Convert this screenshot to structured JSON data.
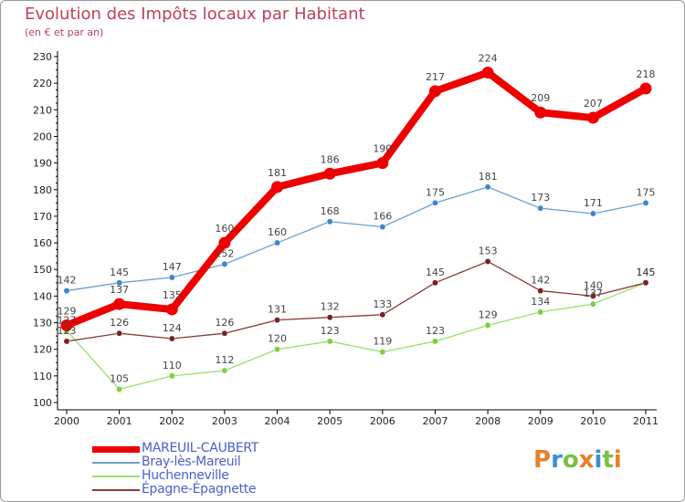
{
  "title": "Evolution des Impôts locaux par Habitant",
  "subtitle": "(en € et par an)",
  "brand": {
    "text": "Proxiti"
  },
  "colors": {
    "background": "#ffffff",
    "title": "#c0405a",
    "legend_text": "#4a5fd0",
    "axis": "#000000",
    "tick_label": "#222222",
    "data_label": "#444444"
  },
  "chart_data": {
    "type": "line",
    "title": "Evolution des Impôts locaux par Habitant",
    "subtitle": "(en € et par an)",
    "xlabel": "",
    "ylabel": "",
    "categories": [
      "2000",
      "2001",
      "2002",
      "2003",
      "2004",
      "2005",
      "2006",
      "2007",
      "2008",
      "2009",
      "2010",
      "2011"
    ],
    "ylim": [
      100,
      230
    ],
    "yticks": [
      100,
      110,
      120,
      130,
      140,
      150,
      160,
      170,
      180,
      190,
      200,
      210,
      220,
      230
    ],
    "grid": false,
    "legend_position": "bottom-left",
    "series": [
      {
        "name": "MAREUIL-CAUBERT",
        "color": "#ee0000",
        "marker_color": "#ee0000",
        "emphasis": true,
        "values": [
          129,
          137,
          135,
          160,
          181,
          186,
          190,
          217,
          224,
          209,
          207,
          218
        ]
      },
      {
        "name": "Bray-lès-Mareuil",
        "color": "#6b9fd3",
        "marker_color": "#3f86cc",
        "emphasis": false,
        "values": [
          142,
          145,
          147,
          152,
          160,
          168,
          166,
          175,
          181,
          173,
          171,
          175
        ]
      },
      {
        "name": "Huchenneville",
        "color": "#9ade6e",
        "marker_color": "#7ed040",
        "emphasis": false,
        "values": [
          127,
          105,
          110,
          112,
          120,
          123,
          119,
          123,
          129,
          134,
          137,
          145
        ]
      },
      {
        "name": "Épagne-Épagnette",
        "color": "#8b3a3a",
        "marker_color": "#7a2222",
        "emphasis": false,
        "values": [
          123,
          126,
          124,
          126,
          131,
          132,
          133,
          145,
          153,
          142,
          140,
          145
        ]
      }
    ]
  }
}
